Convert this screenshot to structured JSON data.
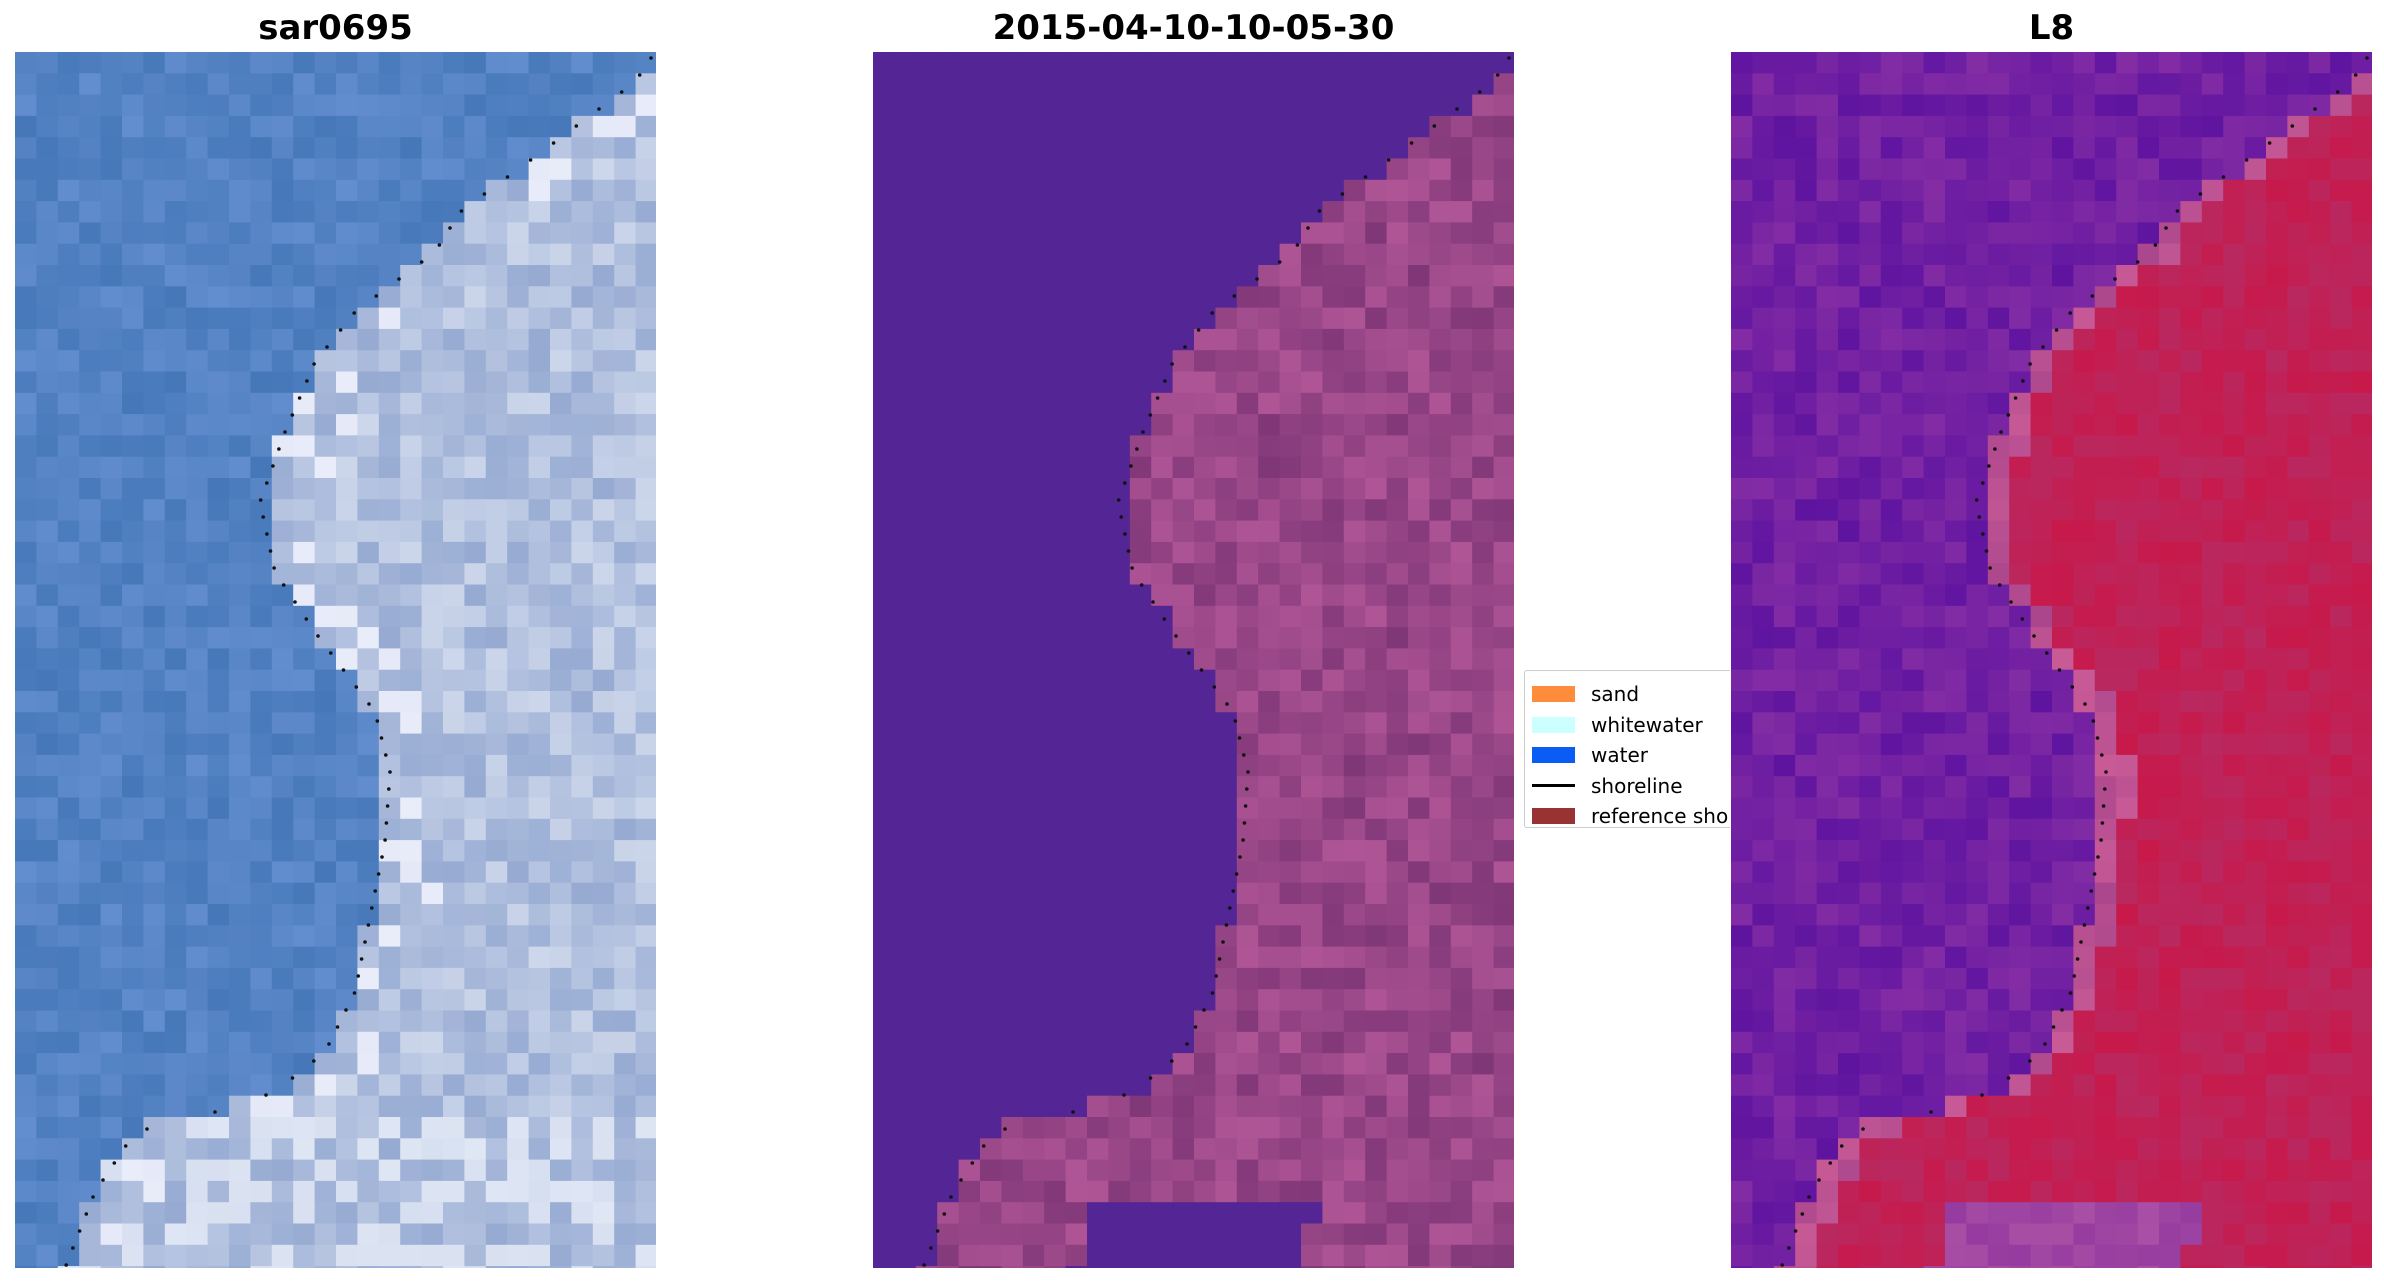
{
  "panels": [
    {
      "title": "sar0695"
    },
    {
      "title": "2015-04-10-10-05-30"
    },
    {
      "title": "L8"
    }
  ],
  "legend": [
    {
      "label": "sand",
      "color": "#ff8c3a",
      "kind": "patch"
    },
    {
      "label": "whitewater",
      "color": "#ccffff",
      "kind": "patch"
    },
    {
      "label": "water",
      "color": "#0a5cf5",
      "kind": "patch"
    },
    {
      "label": "shoreline",
      "color": "#000000",
      "kind": "line"
    },
    {
      "label": "reference sho",
      "color": "#993333",
      "kind": "patch"
    }
  ]
}
